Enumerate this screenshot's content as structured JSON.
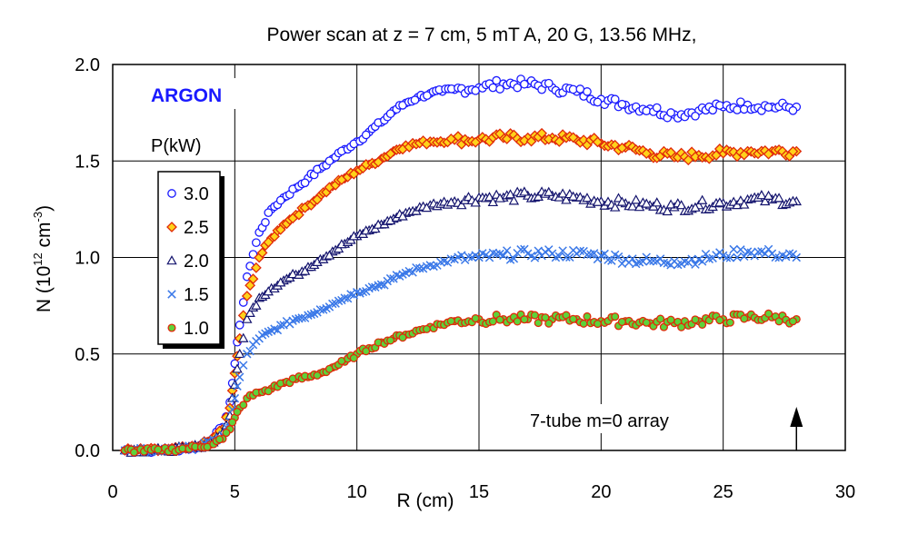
{
  "chart_data": {
    "type": "scatter",
    "title": "Power scan at z = 7 cm, 5 mT A, 20 G, 13.56 MHz,",
    "xlabel": "R (cm)",
    "ylabel_prefix": "N (10",
    "ylabel_exp1": "12",
    "ylabel_mid": " cm",
    "ylabel_exp2": "-3",
    "ylabel_suffix": ")",
    "xlim": [
      0,
      30
    ],
    "ylim": [
      0,
      2.0
    ],
    "x_ticks": [
      "0",
      "5",
      "10",
      "15",
      "20",
      "25",
      "30"
    ],
    "y_ticks": [
      "0.0",
      "0.5",
      "1.0",
      "1.5",
      "2.0"
    ],
    "grid": true,
    "gas_label": "ARGON",
    "legend_title": "P(kW)",
    "legend_placement": "left",
    "annotation": "7-tube m=0 array",
    "arrow_at_x": 28,
    "series": [
      {
        "name": "3.0",
        "marker": "circle",
        "stroke": "#1a1aff",
        "fill": "#ffffff",
        "x": [
          0.5,
          1,
          2,
          3,
          3.5,
          4,
          4.5,
          4.8,
          5,
          5.2,
          5.5,
          6,
          6.5,
          7,
          7.5,
          8,
          8.5,
          9,
          9.5,
          10,
          10.5,
          11,
          11.5,
          12,
          12.5,
          13,
          13.5,
          14,
          15,
          16,
          17,
          18,
          19,
          20,
          21,
          22,
          23,
          24,
          25,
          26,
          27,
          28
        ],
        "y": [
          0.0,
          0.0,
          0.0,
          0.01,
          0.02,
          0.05,
          0.12,
          0.25,
          0.45,
          0.65,
          0.9,
          1.13,
          1.25,
          1.31,
          1.36,
          1.41,
          1.46,
          1.51,
          1.56,
          1.6,
          1.65,
          1.7,
          1.76,
          1.8,
          1.83,
          1.85,
          1.86,
          1.87,
          1.88,
          1.9,
          1.9,
          1.88,
          1.86,
          1.82,
          1.79,
          1.77,
          1.74,
          1.76,
          1.78,
          1.79,
          1.78,
          1.78
        ]
      },
      {
        "name": "2.5",
        "marker": "diamond",
        "stroke": "#e02a0a",
        "fill": "#ffd21a",
        "x": [
          0.5,
          1,
          2,
          3,
          3.5,
          4,
          4.5,
          4.8,
          5,
          5.2,
          5.5,
          6,
          6.5,
          7,
          7.5,
          8,
          8.5,
          9,
          9.5,
          10,
          10.5,
          11,
          11.5,
          12,
          13,
          14,
          15,
          16,
          17,
          18,
          19,
          20,
          21,
          22,
          23,
          24,
          25,
          26,
          27,
          28
        ],
        "y": [
          0.0,
          0.0,
          0.0,
          0.01,
          0.02,
          0.05,
          0.11,
          0.22,
          0.4,
          0.58,
          0.8,
          1.0,
          1.1,
          1.17,
          1.22,
          1.27,
          1.32,
          1.37,
          1.41,
          1.45,
          1.48,
          1.51,
          1.55,
          1.58,
          1.6,
          1.61,
          1.61,
          1.62,
          1.62,
          1.62,
          1.61,
          1.59,
          1.57,
          1.54,
          1.52,
          1.53,
          1.54,
          1.55,
          1.55,
          1.55
        ]
      },
      {
        "name": "2.0",
        "marker": "triangle",
        "stroke": "#14146e",
        "fill": "#ffffff",
        "x": [
          0.5,
          1,
          2,
          3,
          3.5,
          4,
          4.5,
          4.8,
          5,
          5.2,
          5.5,
          6,
          6.5,
          7,
          7.5,
          8,
          8.5,
          9,
          9.5,
          10,
          10.5,
          11,
          11.5,
          12,
          13,
          14,
          15,
          16,
          17,
          18,
          19,
          20,
          21,
          22,
          23,
          24,
          25,
          26,
          27,
          28
        ],
        "y": [
          0.0,
          0.0,
          0.0,
          0.01,
          0.02,
          0.04,
          0.09,
          0.18,
          0.34,
          0.5,
          0.68,
          0.79,
          0.84,
          0.88,
          0.91,
          0.95,
          0.99,
          1.03,
          1.07,
          1.11,
          1.14,
          1.17,
          1.2,
          1.23,
          1.27,
          1.29,
          1.31,
          1.31,
          1.32,
          1.32,
          1.31,
          1.29,
          1.28,
          1.27,
          1.26,
          1.27,
          1.28,
          1.3,
          1.3,
          1.29
        ]
      },
      {
        "name": "1.5",
        "marker": "x",
        "stroke": "#3a78e8",
        "fill": "none",
        "x": [
          0.5,
          1,
          2,
          3,
          3.5,
          4,
          4.5,
          4.8,
          5,
          5.2,
          5.5,
          6,
          6.5,
          7,
          7.5,
          8,
          8.5,
          9,
          9.5,
          10,
          10.5,
          11,
          11.5,
          12,
          13,
          14,
          15,
          16,
          17,
          18,
          19,
          20,
          21,
          22,
          23,
          24,
          25,
          26,
          27,
          28
        ],
        "y": [
          0.0,
          0.0,
          0.0,
          0.01,
          0.02,
          0.04,
          0.08,
          0.15,
          0.27,
          0.38,
          0.5,
          0.58,
          0.62,
          0.65,
          0.68,
          0.7,
          0.73,
          0.76,
          0.79,
          0.82,
          0.84,
          0.86,
          0.89,
          0.92,
          0.96,
          0.99,
          1.0,
          1.01,
          1.02,
          1.02,
          1.02,
          1.01,
          0.99,
          0.98,
          0.98,
          0.99,
          1.01,
          1.03,
          1.02,
          1.0
        ]
      },
      {
        "name": "1.0",
        "marker": "dot",
        "stroke": "#e02a0a",
        "fill": "#5ed23a",
        "x": [
          0.5,
          1,
          2,
          3,
          3.5,
          4,
          4.5,
          4.8,
          5,
          5.2,
          5.5,
          6,
          6.5,
          7,
          7.5,
          8,
          8.5,
          9,
          9.5,
          10,
          10.5,
          11,
          11.5,
          12,
          13,
          14,
          15,
          16,
          17,
          18,
          19,
          20,
          21,
          22,
          23,
          24,
          25,
          26,
          27,
          28
        ],
        "y": [
          0.0,
          0.0,
          0.0,
          0.01,
          0.02,
          0.03,
          0.06,
          0.11,
          0.17,
          0.22,
          0.27,
          0.3,
          0.32,
          0.35,
          0.37,
          0.38,
          0.4,
          0.43,
          0.46,
          0.5,
          0.53,
          0.56,
          0.58,
          0.6,
          0.64,
          0.67,
          0.68,
          0.68,
          0.68,
          0.68,
          0.68,
          0.67,
          0.67,
          0.66,
          0.66,
          0.67,
          0.68,
          0.69,
          0.69,
          0.68
        ]
      }
    ]
  }
}
